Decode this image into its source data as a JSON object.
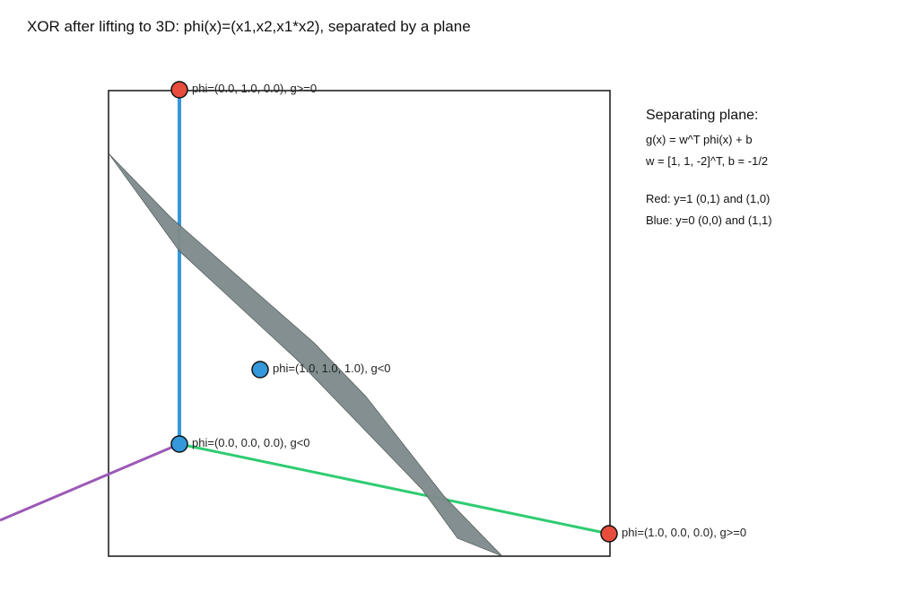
{
  "title": "XOR after lifting to 3D: phi(x)=(x1,x2,x1*x2), separated by a plane",
  "side_panel": {
    "heading": "Separating plane:",
    "equation": "g(x) = w^T phi(x) + b",
    "weights": "w = [1, 1, -2]^T,  b = -1/2",
    "red_note": "Red: y=1  (0,1) and (1,0)",
    "blue_note": "Blue: y=0 (0,0) and (1,1)"
  },
  "points": [
    {
      "label": "phi=(0.0, 1.0, 0.0), g>=0",
      "class": "red"
    },
    {
      "label": "phi=(1.0, 1.0, 1.0), g<0",
      "class": "blue"
    },
    {
      "label": "phi=(0.0, 0.0, 0.0), g<0",
      "class": "blue"
    },
    {
      "label": "phi=(1.0, 0.0, 0.0), g>=0",
      "class": "red"
    }
  ],
  "colors": {
    "red": "#e74c3c",
    "blue": "#3498db",
    "axis_x1": "#2ecc71",
    "axis_x2": "#3498db",
    "axis_x3": "#9b59b6",
    "plane": "#7f8c8d"
  }
}
